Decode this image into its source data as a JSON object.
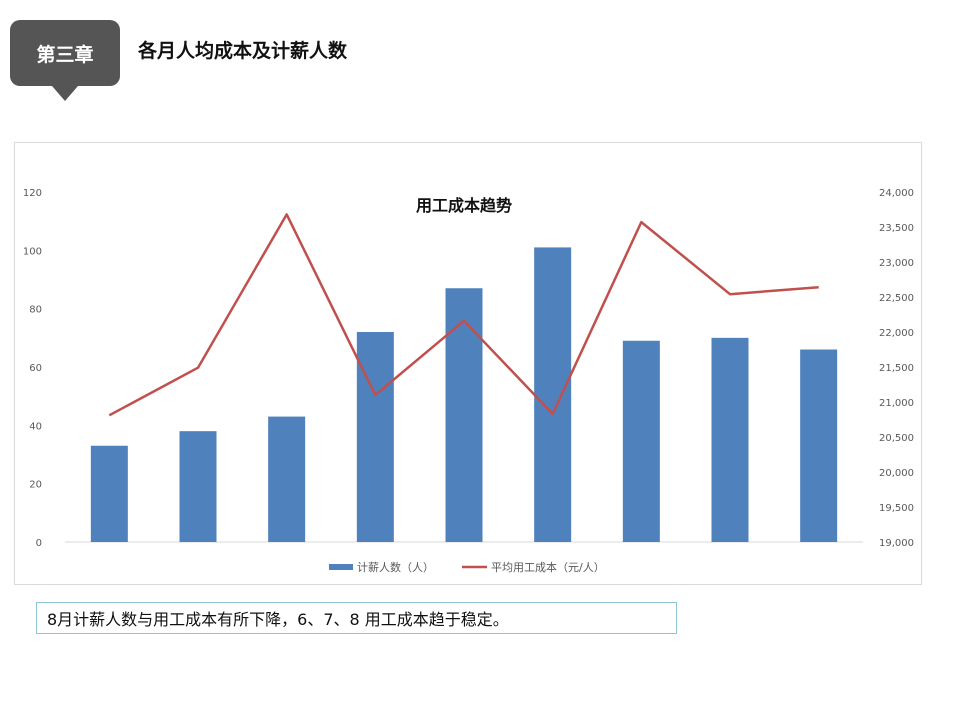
{
  "header": {
    "chapter": "第三章",
    "title": "各月人均成本及计薪人数"
  },
  "note": "8月计薪人数与用工成本有所下降，6、7、8  用工成本趋于稳定。",
  "colors": {
    "bar": "#4f81bd",
    "line": "#c0504d",
    "axis_text": "#595959",
    "badge": "#555555"
  },
  "chart_data": {
    "type": "bar",
    "title": "用工成本趋势",
    "categories": [
      "",
      "",
      "",
      "",
      "",
      "",
      "",
      "",
      ""
    ],
    "series": [
      {
        "name": "计薪人数（人）",
        "type": "bar",
        "axis": "left",
        "values": [
          33,
          38,
          43,
          72,
          87,
          101,
          69,
          70,
          66
        ]
      },
      {
        "name": "平均用工成本（元/人）",
        "type": "line",
        "axis": "right",
        "values": [
          20810,
          21490,
          23680,
          21100,
          22160,
          20830,
          23570,
          22540,
          22640
        ]
      }
    ],
    "y_left": {
      "min": 0,
      "max": 120,
      "ticks": [
        "0",
        "20",
        "40",
        "60",
        "80",
        "100",
        "120"
      ]
    },
    "y_right": {
      "min": 19000,
      "max": 24000,
      "ticks": [
        "19,000",
        "19,500",
        "20,000",
        "20,500",
        "21,000",
        "21,500",
        "22,000",
        "22,500",
        "23,000",
        "23,500",
        "24,000"
      ]
    },
    "grid": false,
    "legend": "bottom"
  }
}
